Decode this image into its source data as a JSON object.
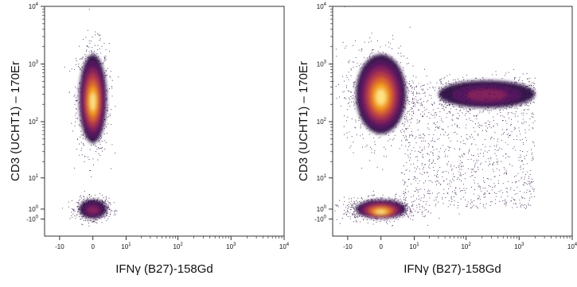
{
  "chart_data": [
    {
      "type": "scatter",
      "subtype": "density-dot-plot",
      "title": "",
      "xlabel": "IFNγ (B27)-158Gd",
      "ylabel": "CD3 (UCHT1) – 170Er",
      "x_scale": "arcsinh",
      "y_scale": "arcsinh",
      "xlim": [
        -20,
        10000
      ],
      "ylim": [
        -5,
        10000
      ],
      "x_ticks": [
        {
          "value": -10,
          "base": "-10",
          "exp": ""
        },
        {
          "value": 0,
          "base": "0",
          "exp": ""
        },
        {
          "value": 10,
          "base": "10",
          "exp": "1"
        },
        {
          "value": 100,
          "base": "10",
          "exp": "2"
        },
        {
          "value": 1000,
          "base": "10",
          "exp": "3"
        },
        {
          "value": 10000,
          "base": "10",
          "exp": "4"
        }
      ],
      "y_ticks": [
        {
          "value": -1,
          "base": "-10",
          "exp": "0"
        },
        {
          "value": 1,
          "base": "10",
          "exp": "0"
        },
        {
          "value": 10,
          "base": "10",
          "exp": "1"
        },
        {
          "value": 100,
          "base": "10",
          "exp": "2"
        },
        {
          "value": 1000,
          "base": "10",
          "exp": "3"
        },
        {
          "value": 10000,
          "base": "10",
          "exp": "4"
        }
      ],
      "populations": [
        {
          "x_center": 0,
          "y_center": 250,
          "x_spread": 2,
          "y_range": [
            20,
            1000
          ],
          "density": "high"
        },
        {
          "x_center": 0,
          "y_center": 1,
          "x_spread": 2,
          "y_range": [
            -1,
            3
          ],
          "density": "medium"
        }
      ],
      "grid": false,
      "legend": "none"
    },
    {
      "type": "scatter",
      "subtype": "density-dot-plot",
      "title": "",
      "xlabel": "IFNγ (B27)-158Gd",
      "ylabel": "CD3 (UCHT1) – 170Er",
      "x_scale": "arcsinh",
      "y_scale": "arcsinh",
      "xlim": [
        -20,
        10000
      ],
      "ylim": [
        -5,
        10000
      ],
      "x_ticks": [
        {
          "value": -10,
          "base": "-10",
          "exp": ""
        },
        {
          "value": 0,
          "base": "0",
          "exp": ""
        },
        {
          "value": 10,
          "base": "10",
          "exp": "1"
        },
        {
          "value": 100,
          "base": "10",
          "exp": "2"
        },
        {
          "value": 1000,
          "base": "10",
          "exp": "3"
        },
        {
          "value": 10000,
          "base": "10",
          "exp": "4"
        }
      ],
      "y_ticks": [
        {
          "value": -1,
          "base": "-10",
          "exp": "0"
        },
        {
          "value": 1,
          "base": "10",
          "exp": "0"
        },
        {
          "value": 10,
          "base": "10",
          "exp": "1"
        },
        {
          "value": 100,
          "base": "10",
          "exp": "2"
        },
        {
          "value": 1000,
          "base": "10",
          "exp": "3"
        },
        {
          "value": 10000,
          "base": "10",
          "exp": "4"
        }
      ],
      "populations": [
        {
          "x_center": 0,
          "y_center": 300,
          "x_spread": 5,
          "y_range": [
            30,
            1000
          ],
          "density": "high"
        },
        {
          "x_center": 0,
          "y_center": 1,
          "x_spread": 5,
          "y_range": [
            -1,
            3
          ],
          "density": "high"
        },
        {
          "x_center": 500,
          "y_center": 300,
          "x_range": [
            30,
            2000
          ],
          "y_range": [
            150,
            500
          ],
          "density": "medium"
        },
        {
          "x_range": [
            5,
            2000
          ],
          "y_range": [
            1,
            500
          ],
          "density": "low"
        }
      ],
      "grid": false,
      "legend": "none"
    }
  ],
  "colors": {
    "density_scale": [
      "#2a0b40",
      "#541660",
      "#86215c",
      "#b83c45",
      "#dd6b2a",
      "#f5a623",
      "#fde68a"
    ],
    "background": "#ffffff",
    "axis": "#333333"
  }
}
